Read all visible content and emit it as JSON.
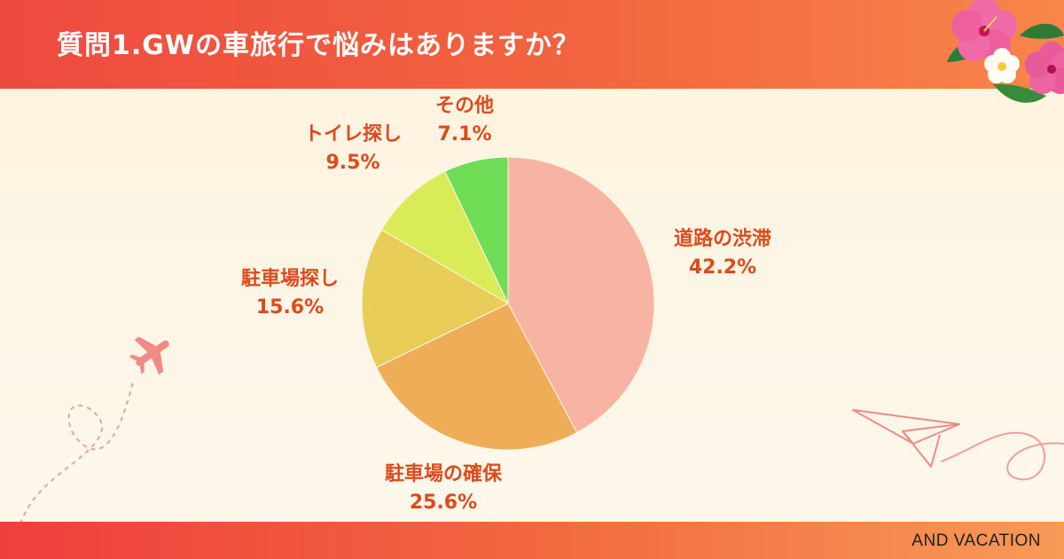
{
  "title": "質問1.GWの車旅行で悩みはありますか？",
  "brand": "AND VACATION",
  "colors": {
    "header": "#ee4a3f",
    "label": "#dd4a1c",
    "slices": [
      "#f7b4a2",
      "#f0ad58",
      "#e8cd58",
      "#d9ec58",
      "#6fdd55"
    ]
  },
  "chart_data": {
    "type": "pie",
    "title": "",
    "categories": [
      "道路の渋滞",
      "駐車場の確保",
      "駐車場探し",
      "トイレ探し",
      "その他"
    ],
    "values": [
      42.2,
      25.6,
      15.6,
      9.5,
      7.1
    ],
    "value_labels": [
      "42.2%",
      "25.6%",
      "15.6%",
      "9.5%",
      "7.1%"
    ],
    "start": "top",
    "direction": "clockwise",
    "legend": "none"
  }
}
